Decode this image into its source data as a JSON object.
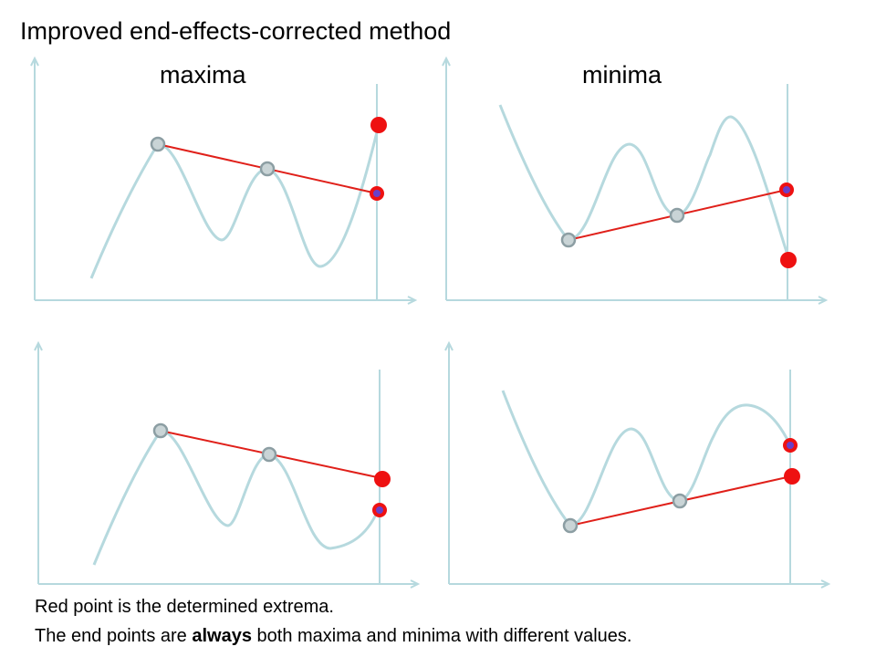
{
  "title": "Improved end-effects-corrected method",
  "columns": {
    "left": "maxima",
    "right": "minima"
  },
  "captions": {
    "line1": "Red point is the determined extrema.",
    "line2_before": "The end points are ",
    "line2_bold": "always",
    "line2_after": " both maxima and minima with different values."
  },
  "colors": {
    "curve": "#b6d9de",
    "axis": "#b6d9de",
    "envelope_line": "#e0201a",
    "extremum_fill": "#c9d4d6",
    "extremum_stroke": "#8c9ea3",
    "determined_point": "#ee1111",
    "end_marker_center": "#6a3fc8"
  }
}
